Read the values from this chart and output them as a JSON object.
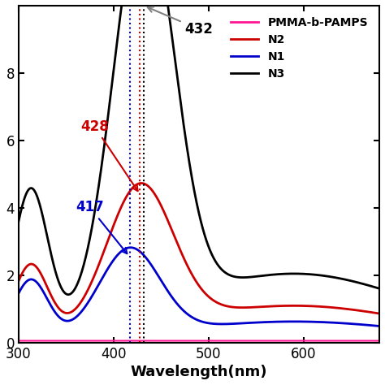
{
  "xlabel": "Wavelength(nm)",
  "xlim": [
    300,
    680
  ],
  "ylim": [
    0,
    10
  ],
  "ytick_labels": [
    "0",
    "2",
    "4",
    "6",
    "8"
  ],
  "ytick_vals": [
    0,
    2,
    4,
    6,
    8
  ],
  "xticks": [
    300,
    400,
    500,
    600
  ],
  "legend_entries": [
    "PMMA-b-PAMPS",
    "N2",
    "N1",
    "N3"
  ],
  "legend_colors": [
    "#ff1493",
    "#cc0000",
    "#0000cc",
    "#000000"
  ],
  "peak_N3": 432,
  "peak_N2": 428,
  "peak_N1": 417,
  "annotation_432": "432",
  "annotation_428": "428",
  "annotation_417": "417",
  "background_color": "#ffffff"
}
